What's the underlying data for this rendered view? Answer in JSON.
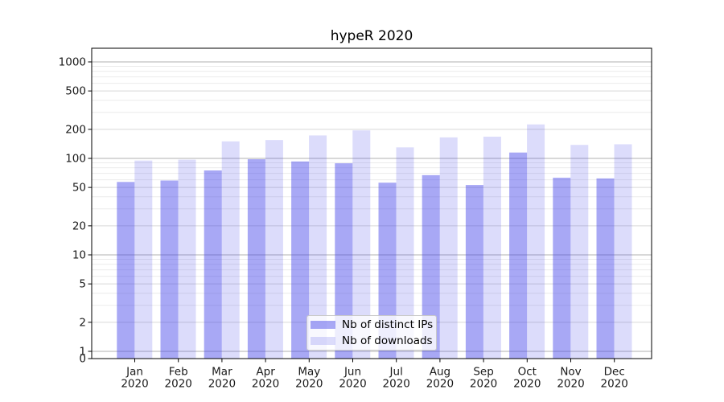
{
  "chart_data": {
    "type": "bar",
    "title": "hypeR 2020",
    "xlabel": "",
    "ylabel": "",
    "categories": [
      "Jan 2020",
      "Feb 2020",
      "Mar 2020",
      "Apr 2020",
      "May 2020",
      "Jun 2020",
      "Jul 2020",
      "Aug 2020",
      "Sep 2020",
      "Oct 2020",
      "Nov 2020",
      "Dec 2020"
    ],
    "series": [
      {
        "name": "Nb of distinct IPs",
        "color": "rgba(62,62,232,0.45)",
        "values": [
          57,
          59,
          75,
          98,
          93,
          89,
          56,
          67,
          53,
          115,
          63,
          62
        ]
      },
      {
        "name": "Nb of downloads",
        "color": "rgba(62,62,232,0.18)",
        "values": [
          95,
          97,
          150,
          155,
          173,
          195,
          130,
          165,
          168,
          225,
          138,
          140
        ]
      }
    ],
    "yaxis": {
      "scale": "log",
      "ticks": [
        1000,
        500,
        200,
        100,
        50,
        20,
        10,
        5,
        2,
        1,
        0
      ],
      "decade_gridlines": [
        1,
        10,
        100,
        1000
      ],
      "ylim": [
        0,
        1400
      ]
    },
    "legend": {
      "position": "lower-center"
    },
    "grid": true
  },
  "colors": {
    "background": "#ffffff",
    "decade_grid": "#b2b2b2",
    "major_grid": "#dcdcdc",
    "minor_grid": "#ebebeb",
    "axis": "#000000",
    "tick_text": "#1a1a1a"
  }
}
